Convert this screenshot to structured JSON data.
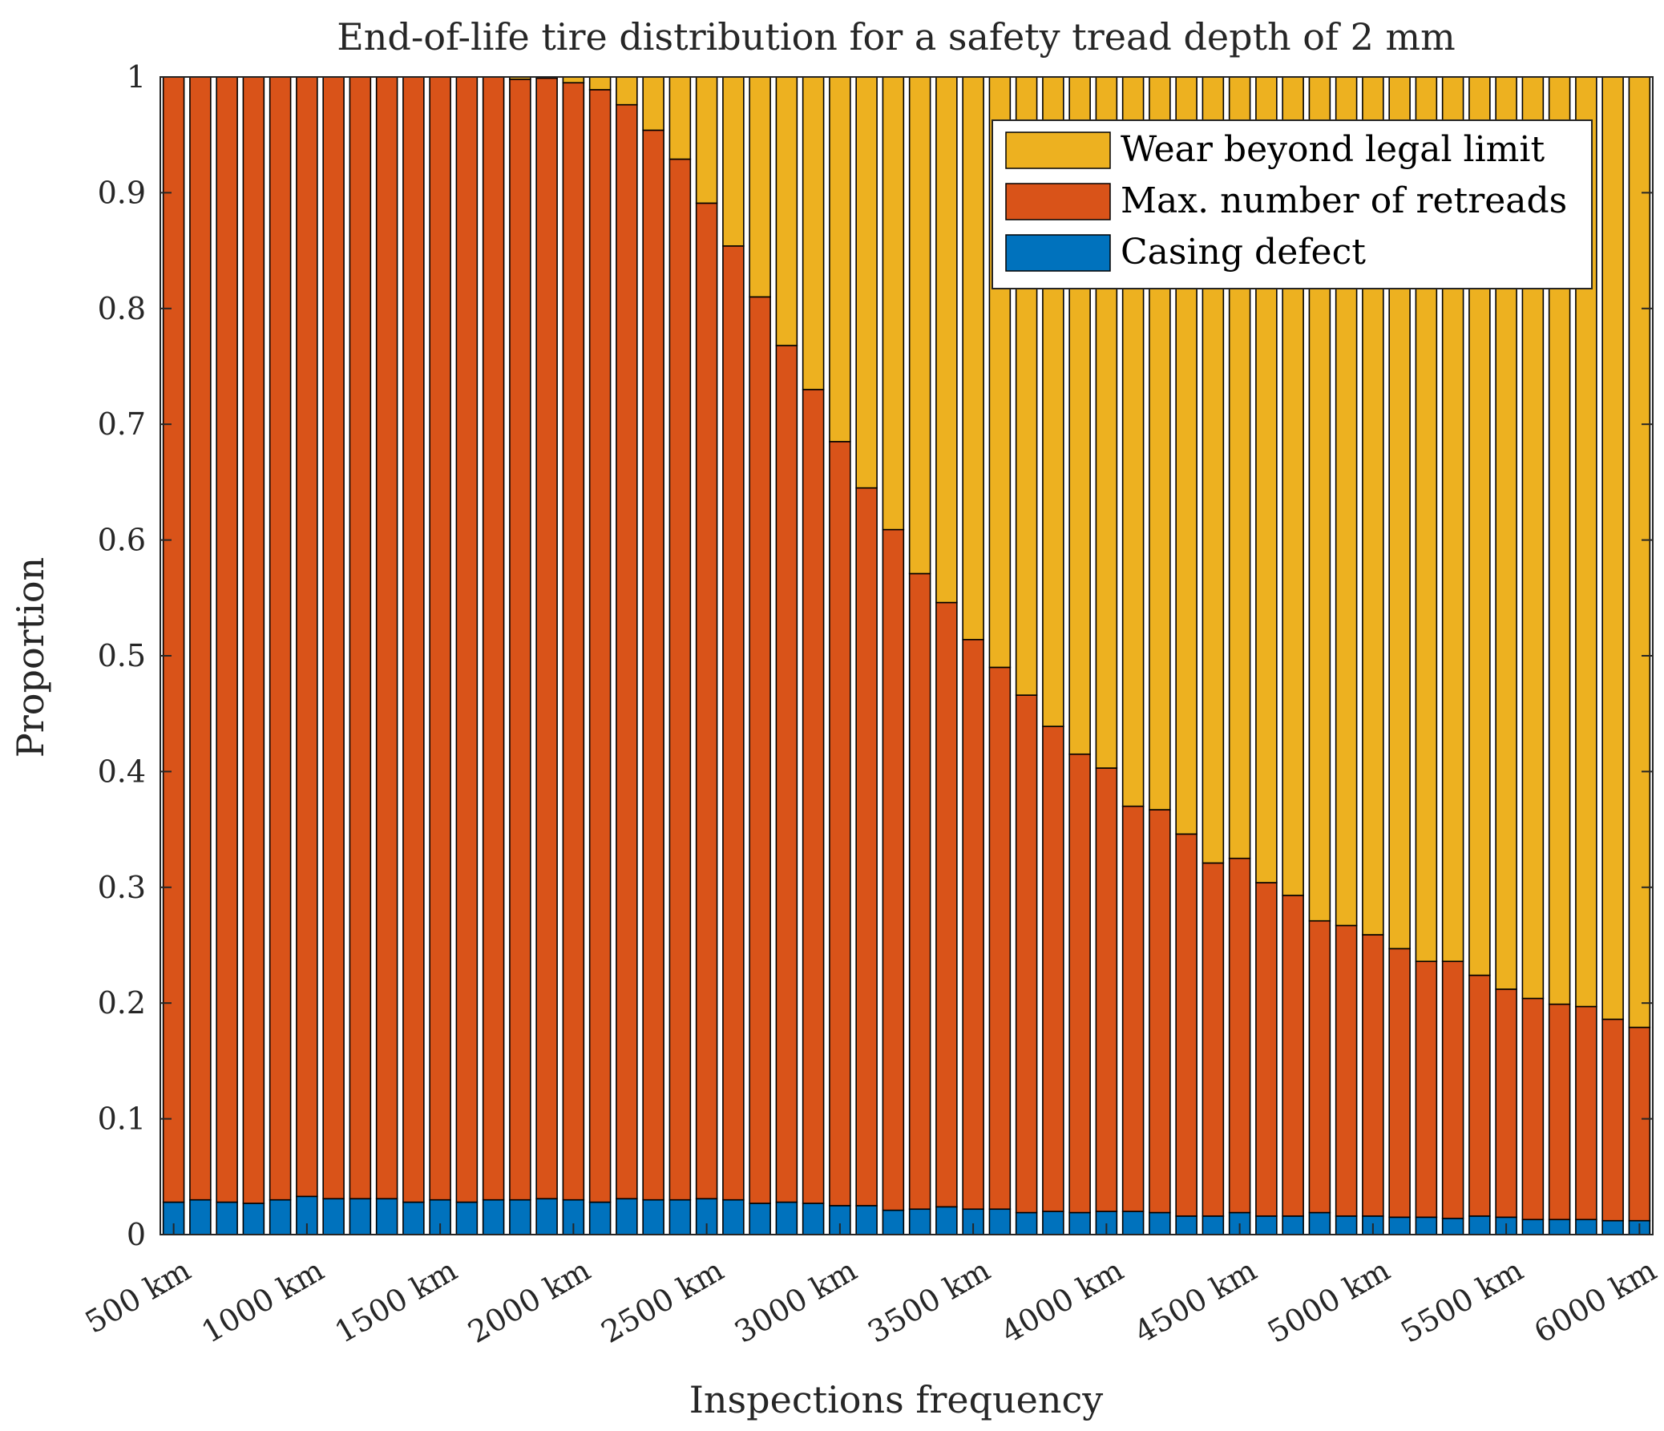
{
  "chart_data": {
    "type": "stacked-bar",
    "title": "End-of-life tire distribution for a safety tread depth of 2 mm",
    "xlabel": "Inspections frequency",
    "ylabel": "Proportion",
    "ylim": [
      0,
      1
    ],
    "yticks": [
      "0",
      "0.1",
      "0.2",
      "0.3",
      "0.4",
      "0.5",
      "0.6",
      "0.7",
      "0.8",
      "0.9",
      "1"
    ],
    "ytick_values": [
      0,
      0.1,
      0.2,
      0.3,
      0.4,
      0.5,
      0.6,
      0.7,
      0.8,
      0.9,
      1
    ],
    "x_values_km": [
      500,
      600,
      700,
      800,
      900,
      1000,
      1100,
      1200,
      1300,
      1400,
      1500,
      1600,
      1700,
      1800,
      1900,
      2000,
      2100,
      2200,
      2300,
      2400,
      2500,
      2600,
      2700,
      2800,
      2900,
      3000,
      3100,
      3200,
      3300,
      3400,
      3500,
      3600,
      3700,
      3800,
      3900,
      4000,
      4100,
      4200,
      4300,
      4400,
      4500,
      4600,
      4700,
      4800,
      4900,
      5000,
      5100,
      5200,
      5300,
      5400,
      5500,
      5600,
      5700,
      5800,
      5900,
      6000
    ],
    "xtick_labels": [
      "500 km",
      "1000 km",
      "1500 km",
      "2000 km",
      "2500 km",
      "3000 km",
      "3500 km",
      "4000 km",
      "4500 km",
      "5000 km",
      "5500 km",
      "6000 km"
    ],
    "xtick_indices": [
      0,
      5,
      10,
      15,
      20,
      25,
      30,
      35,
      40,
      45,
      50,
      55
    ],
    "legend_position": "top-right",
    "series": [
      {
        "name": "Casing defect",
        "color": "#0072BD",
        "values": [
          0.028,
          0.03,
          0.028,
          0.027,
          0.03,
          0.033,
          0.031,
          0.031,
          0.031,
          0.028,
          0.03,
          0.028,
          0.03,
          0.03,
          0.031,
          0.03,
          0.028,
          0.031,
          0.03,
          0.03,
          0.031,
          0.03,
          0.027,
          0.028,
          0.027,
          0.025,
          0.025,
          0.021,
          0.022,
          0.024,
          0.022,
          0.022,
          0.019,
          0.02,
          0.019,
          0.02,
          0.02,
          0.019,
          0.016,
          0.016,
          0.019,
          0.016,
          0.016,
          0.019,
          0.016,
          0.016,
          0.015,
          0.015,
          0.014,
          0.016,
          0.015,
          0.013,
          0.013,
          0.013,
          0.012,
          0.012
        ]
      },
      {
        "name": "Max. number of retreads",
        "color": "#D95319",
        "values": [
          0.972,
          0.97,
          0.972,
          0.973,
          0.97,
          0.967,
          0.969,
          0.969,
          0.969,
          0.972,
          0.97,
          0.972,
          0.97,
          0.968,
          0.968,
          0.965,
          0.961,
          0.945,
          0.924,
          0.899,
          0.86,
          0.824,
          0.783,
          0.74,
          0.703,
          0.66,
          0.62,
          0.588,
          0.549,
          0.522,
          0.492,
          0.468,
          0.447,
          0.419,
          0.396,
          0.383,
          0.35,
          0.348,
          0.33,
          0.305,
          0.306,
          0.288,
          0.277,
          0.252,
          0.251,
          0.243,
          0.232,
          0.221,
          0.222,
          0.208,
          0.197,
          0.191,
          0.186,
          0.184,
          0.174,
          0.167
        ]
      },
      {
        "name": "Wear beyond legal limit",
        "color": "#EDB120",
        "values": [
          0,
          0,
          0,
          0,
          0,
          0,
          0,
          0,
          0,
          0,
          0,
          0,
          0,
          0.002,
          0.001,
          0.005,
          0.011,
          0.024,
          0.046,
          0.071,
          0.109,
          0.146,
          0.19,
          0.232,
          0.27,
          0.315,
          0.355,
          0.391,
          0.429,
          0.454,
          0.486,
          0.51,
          0.534,
          0.561,
          0.585,
          0.597,
          0.63,
          0.633,
          0.654,
          0.679,
          0.675,
          0.696,
          0.707,
          0.729,
          0.733,
          0.741,
          0.753,
          0.764,
          0.764,
          0.776,
          0.788,
          0.796,
          0.801,
          0.803,
          0.814,
          0.821
        ]
      }
    ],
    "legend_order": [
      "Wear beyond legal limit",
      "Max. number of retreads",
      "Casing defect"
    ]
  }
}
